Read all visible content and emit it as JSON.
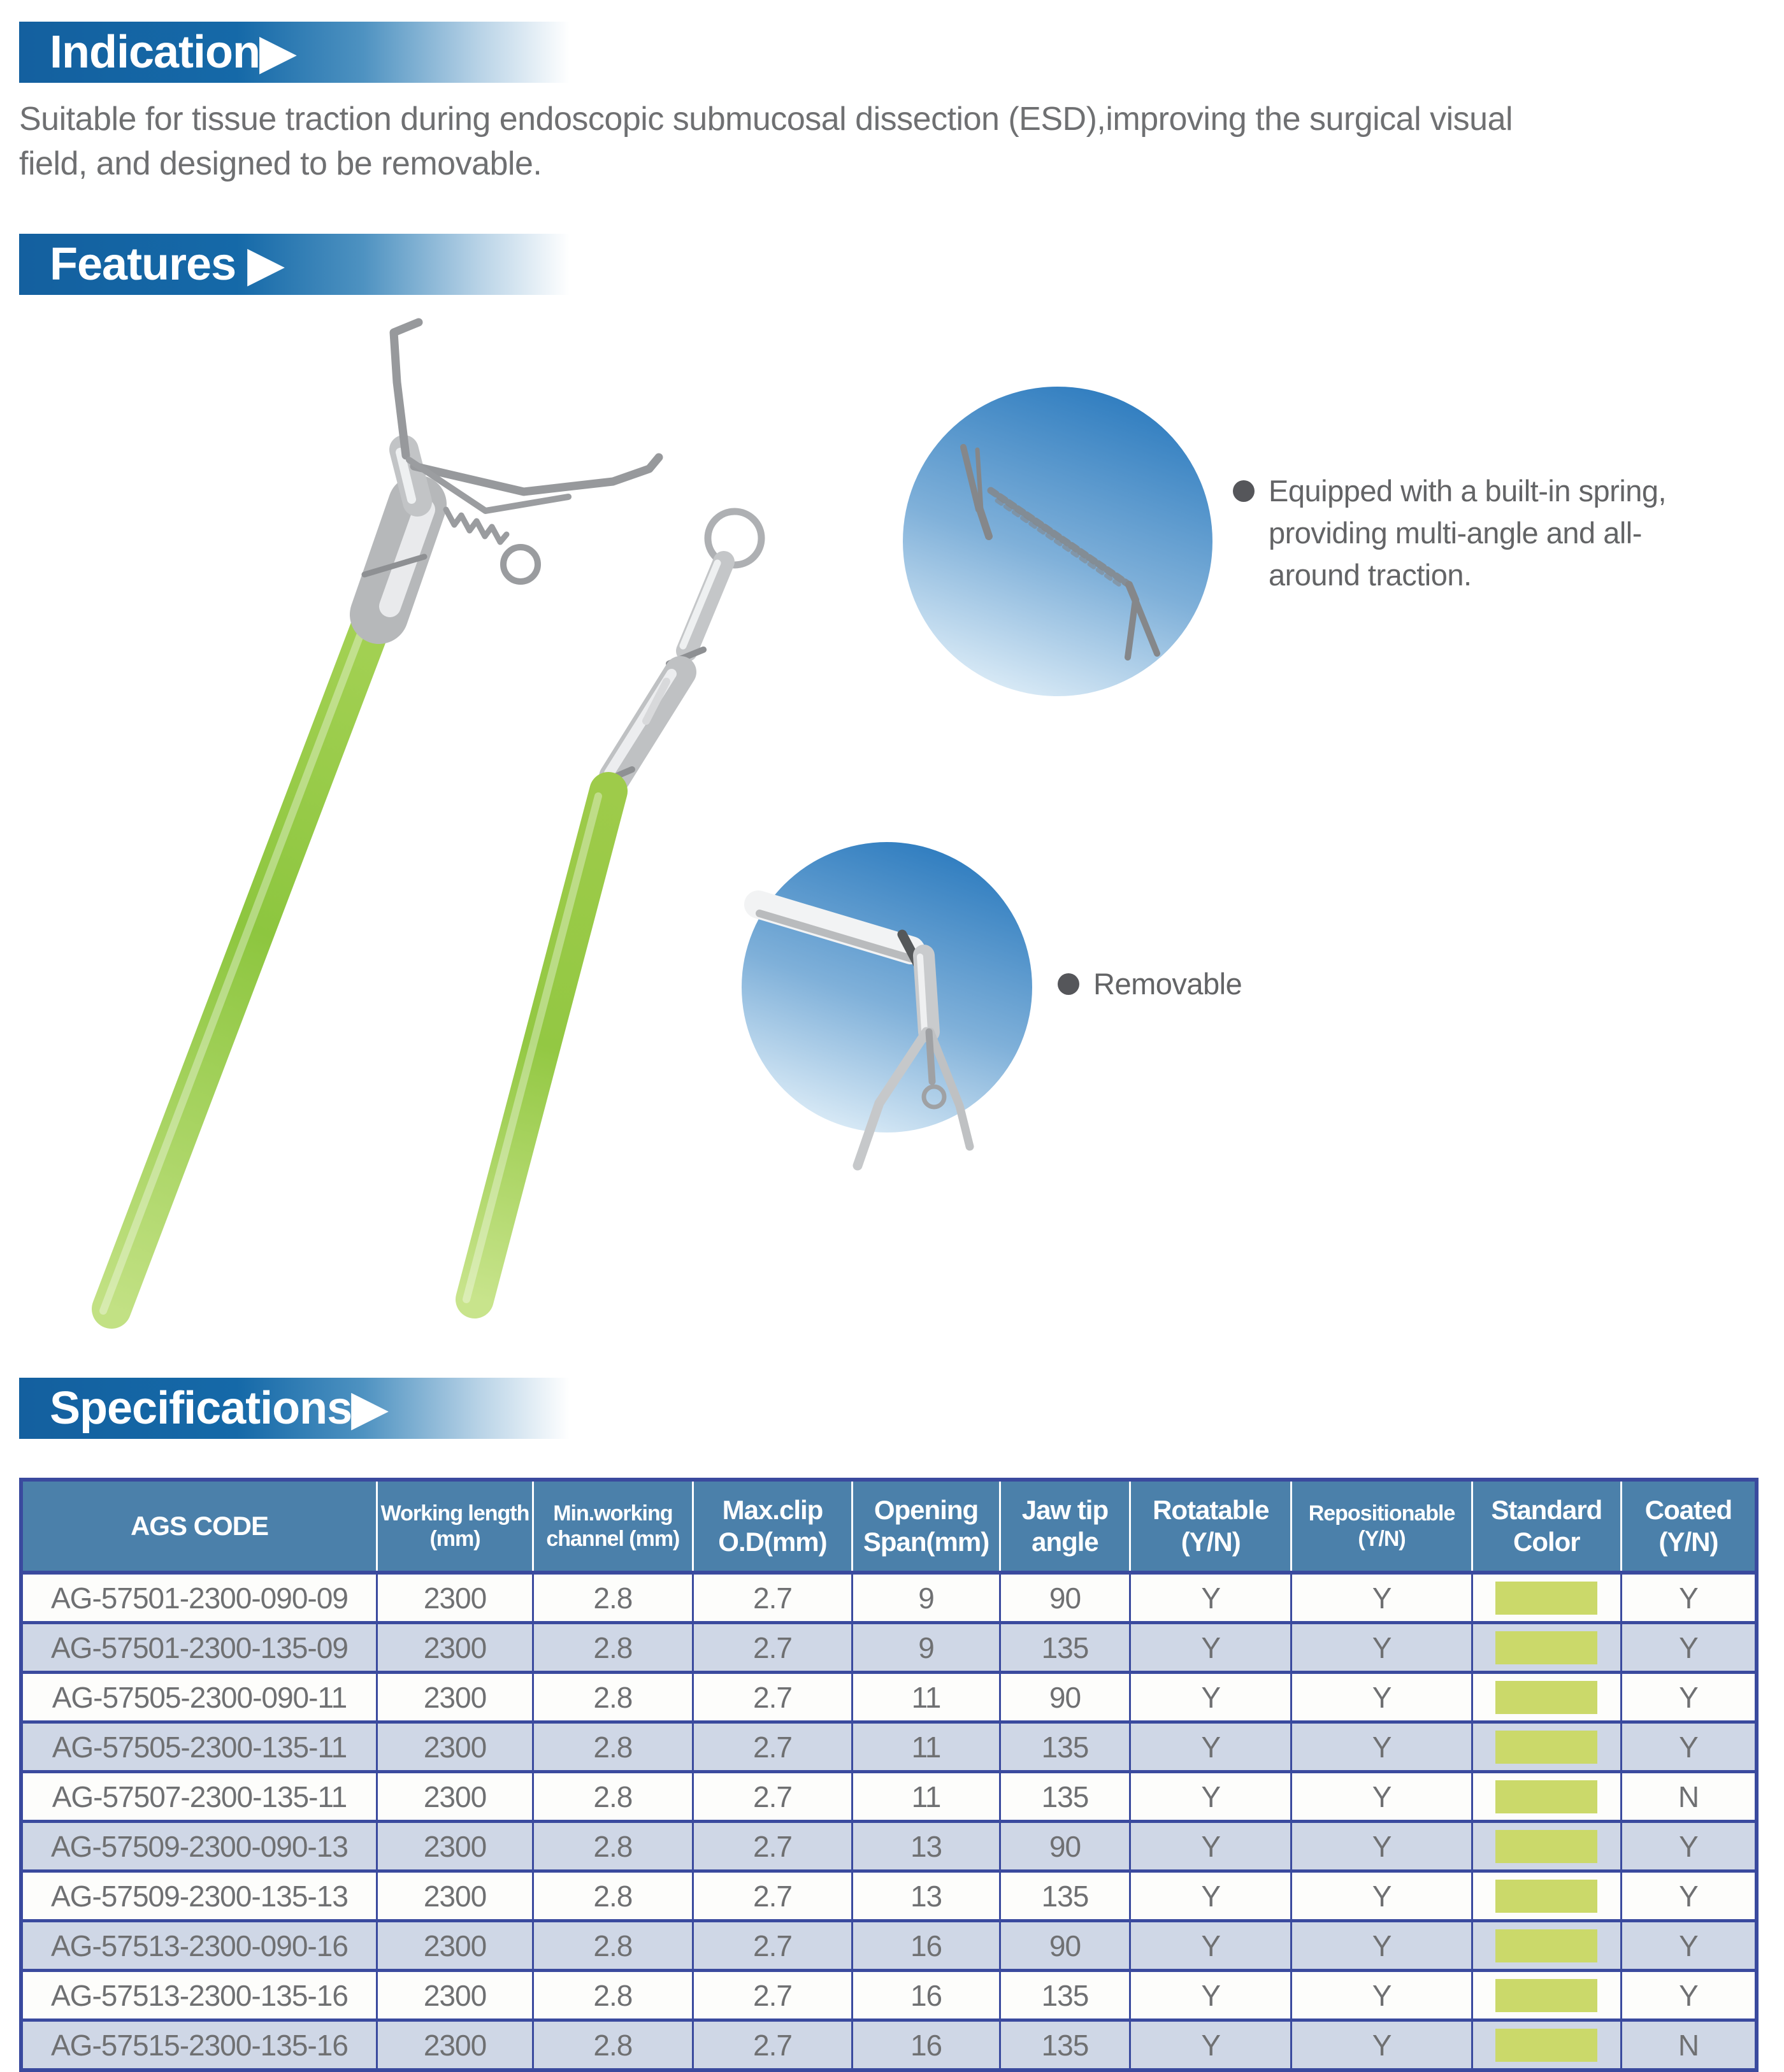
{
  "sections": {
    "indication": {
      "title": "Indication▶",
      "body_lines": [
        "Suitable for tissue traction during endoscopic submucosal dissection (ESD),improving the surgical visual",
        "field, and designed to be removable."
      ]
    },
    "features": {
      "title": "Features ▶",
      "bullets": [
        "Equipped with a built-in spring, providing multi-angle and all-around traction.",
        "Removable"
      ]
    },
    "specifications": {
      "title": "Specifications▶"
    }
  },
  "table": {
    "headers": [
      "AGS CODE",
      "Working length (mm)",
      "Min.working channel (mm)",
      "Max.clip O.D(mm)",
      "Opening Span(mm)",
      "Jaw tip angle",
      "Rotatable (Y/N)",
      "Repositionable (Y/N)",
      "Standard Color",
      "Coated (Y/N)"
    ],
    "rows": [
      {
        "code": "AG-57501-2300-090-09",
        "working_length": "2300",
        "min_channel": "2.8",
        "max_clip_od": "2.7",
        "opening_span": "9",
        "jaw_tip_angle": "90",
        "rotatable": "Y",
        "repositionable": "Y",
        "standard_color": "#cbd96a",
        "coated": "Y"
      },
      {
        "code": "AG-57501-2300-135-09",
        "working_length": "2300",
        "min_channel": "2.8",
        "max_clip_od": "2.7",
        "opening_span": "9",
        "jaw_tip_angle": "135",
        "rotatable": "Y",
        "repositionable": "Y",
        "standard_color": "#cbd96a",
        "coated": "Y"
      },
      {
        "code": "AG-57505-2300-090-11",
        "working_length": "2300",
        "min_channel": "2.8",
        "max_clip_od": "2.7",
        "opening_span": "11",
        "jaw_tip_angle": "90",
        "rotatable": "Y",
        "repositionable": "Y",
        "standard_color": "#cbd96a",
        "coated": "Y"
      },
      {
        "code": "AG-57505-2300-135-11",
        "working_length": "2300",
        "min_channel": "2.8",
        "max_clip_od": "2.7",
        "opening_span": "11",
        "jaw_tip_angle": "135",
        "rotatable": "Y",
        "repositionable": "Y",
        "standard_color": "#cbd96a",
        "coated": "Y"
      },
      {
        "code": "AG-57507-2300-135-11",
        "working_length": "2300",
        "min_channel": "2.8",
        "max_clip_od": "2.7",
        "opening_span": "11",
        "jaw_tip_angle": "135",
        "rotatable": "Y",
        "repositionable": "Y",
        "standard_color": "#cbd96a",
        "coated": "N"
      },
      {
        "code": "AG-57509-2300-090-13",
        "working_length": "2300",
        "min_channel": "2.8",
        "max_clip_od": "2.7",
        "opening_span": "13",
        "jaw_tip_angle": "90",
        "rotatable": "Y",
        "repositionable": "Y",
        "standard_color": "#cbd96a",
        "coated": "Y"
      },
      {
        "code": "AG-57509-2300-135-13",
        "working_length": "2300",
        "min_channel": "2.8",
        "max_clip_od": "2.7",
        "opening_span": "13",
        "jaw_tip_angle": "135",
        "rotatable": "Y",
        "repositionable": "Y",
        "standard_color": "#cbd96a",
        "coated": "Y"
      },
      {
        "code": "AG-57513-2300-090-16",
        "working_length": "2300",
        "min_channel": "2.8",
        "max_clip_od": "2.7",
        "opening_span": "16",
        "jaw_tip_angle": "90",
        "rotatable": "Y",
        "repositionable": "Y",
        "standard_color": "#cbd96a",
        "coated": "Y"
      },
      {
        "code": "AG-57513-2300-135-16",
        "working_length": "2300",
        "min_channel": "2.8",
        "max_clip_od": "2.7",
        "opening_span": "16",
        "jaw_tip_angle": "135",
        "rotatable": "Y",
        "repositionable": "Y",
        "standard_color": "#cbd96a",
        "coated": "Y"
      },
      {
        "code": "AG-57515-2300-135-16",
        "working_length": "2300",
        "min_channel": "2.8",
        "max_clip_od": "2.7",
        "opening_span": "16",
        "jaw_tip_angle": "135",
        "rotatable": "Y",
        "repositionable": "Y",
        "standard_color": "#cbd96a",
        "coated": "N"
      }
    ]
  },
  "colors": {
    "header_bar_blue": "#14609f",
    "table_header_bg": "#4b80aa",
    "table_border_navy": "#3a4a9e",
    "row_alt_blue": "#cfd7e6",
    "text_gray": "#6f7072",
    "swatch_green": "#cbd96a",
    "callout_circle_blue": "#2e7cbf",
    "shaft_green": "#8dc63f"
  }
}
